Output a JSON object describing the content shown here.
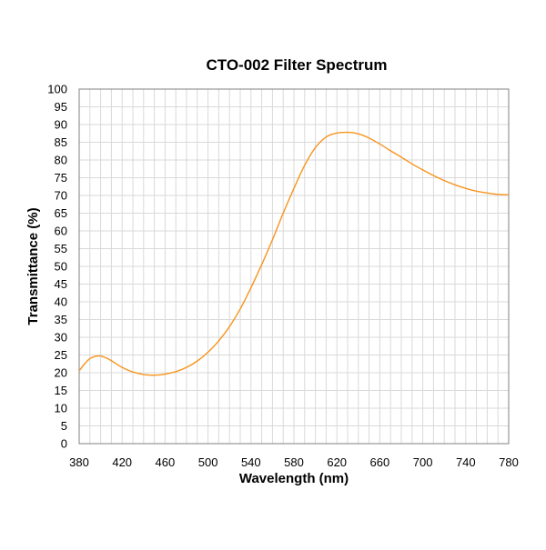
{
  "chart_data": {
    "type": "line",
    "title": "CTO-002 Filter Spectrum",
    "xlabel": "Wavelength (nm)",
    "ylabel": "Transmittance (%)",
    "xlim": [
      380,
      780
    ],
    "ylim": [
      0,
      100
    ],
    "x_ticks": [
      380,
      420,
      460,
      500,
      540,
      580,
      620,
      660,
      700,
      740,
      780
    ],
    "y_ticks": [
      0,
      5,
      10,
      15,
      20,
      25,
      30,
      35,
      40,
      45,
      50,
      55,
      60,
      65,
      70,
      75,
      80,
      85,
      90,
      95,
      100
    ],
    "grid": true,
    "legend": "none",
    "series": [
      {
        "color": "#F7941D",
        "x": [
          380,
          385,
          390,
          395,
          400,
          405,
          410,
          420,
          430,
          440,
          450,
          460,
          470,
          480,
          490,
          500,
          510,
          520,
          530,
          540,
          550,
          560,
          570,
          580,
          590,
          600,
          610,
          620,
          630,
          640,
          650,
          660,
          670,
          680,
          690,
          700,
          710,
          720,
          730,
          740,
          750,
          760,
          770,
          780
        ],
        "y": [
          20.5,
          22.5,
          24.0,
          24.6,
          24.7,
          24.2,
          23.4,
          21.5,
          20.2,
          19.5,
          19.3,
          19.6,
          20.3,
          21.5,
          23.3,
          25.8,
          29.0,
          33.0,
          38.0,
          44.0,
          50.5,
          57.5,
          65.0,
          72.0,
          78.5,
          83.5,
          86.5,
          87.6,
          87.8,
          87.4,
          86.2,
          84.5,
          82.6,
          80.8,
          78.9,
          77.2,
          75.6,
          74.2,
          73.0,
          72.0,
          71.2,
          70.7,
          70.3,
          70.2
        ]
      }
    ]
  }
}
